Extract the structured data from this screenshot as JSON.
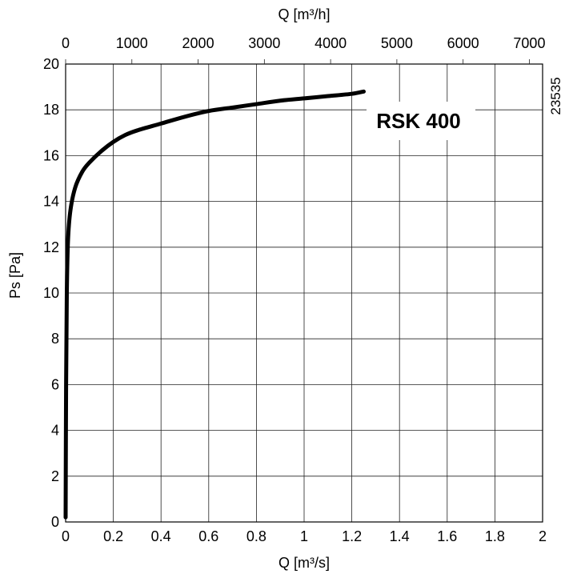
{
  "chart_data": {
    "type": "line",
    "xlabel": "Q [m³/s]",
    "ylabel": "Ps [Pa]",
    "x2label": "Q [m³/h]",
    "xlim": [
      0,
      2
    ],
    "ylim": [
      0,
      20
    ],
    "x2lim": [
      0,
      7200
    ],
    "x_ticks": [
      "0",
      "0.2",
      "0.4",
      "0.6",
      "0.8",
      "1",
      "1.2",
      "1.4",
      "1.6",
      "1.8",
      "2"
    ],
    "y_ticks": [
      "0",
      "2",
      "4",
      "6",
      "8",
      "10",
      "12",
      "14",
      "16",
      "18",
      "20"
    ],
    "x2_ticks": [
      "0",
      "1000",
      "2000",
      "3000",
      "4000",
      "5000",
      "6000",
      "7000"
    ],
    "grid": true,
    "series": [
      {
        "name": "RSK 400",
        "x": [
          0,
          0.002,
          0.005,
          0.01,
          0.02,
          0.04,
          0.07,
          0.1,
          0.15,
          0.2,
          0.25,
          0.3,
          0.4,
          0.5,
          0.6,
          0.7,
          0.8,
          0.9,
          1.0,
          1.1,
          1.2,
          1.25
        ],
        "y": [
          0.2,
          6,
          10,
          12.3,
          13.6,
          14.6,
          15.3,
          15.7,
          16.2,
          16.6,
          16.9,
          17.1,
          17.4,
          17.7,
          17.95,
          18.1,
          18.25,
          18.4,
          18.5,
          18.6,
          18.7,
          18.8
        ]
      }
    ],
    "annotation": "RSK 400",
    "side_label": "23535"
  }
}
